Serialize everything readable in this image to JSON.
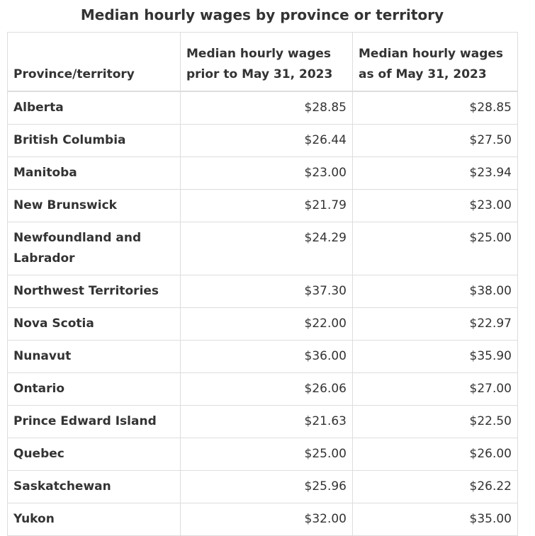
{
  "caption": "Median hourly wages by province or territory",
  "headers": {
    "province": "Province/territory",
    "prior_line1": "Median hourly wages",
    "prior_line2": "prior to May 31, 2023",
    "asof_line1": "Median hourly wages",
    "asof_line2": "as of May 31, 2023"
  },
  "rows": [
    {
      "province": "Alberta",
      "prior": "$28.85",
      "asof": "$28.85"
    },
    {
      "province": "British Columbia",
      "prior": "$26.44",
      "asof": "$27.50"
    },
    {
      "province": "Manitoba",
      "prior": "$23.00",
      "asof": "$23.94"
    },
    {
      "province": "New Brunswick",
      "prior": "$21.79",
      "asof": "$23.00"
    },
    {
      "province": "Newfoundland and Labrador",
      "prior": "$24.29",
      "asof": "$25.00"
    },
    {
      "province": "Northwest Territories",
      "prior": "$37.30",
      "asof": "$38.00"
    },
    {
      "province": "Nova Scotia",
      "prior": "$22.00",
      "asof": "$22.97"
    },
    {
      "province": "Nunavut",
      "prior": "$36.00",
      "asof": "$35.90"
    },
    {
      "province": "Ontario",
      "prior": "$26.06",
      "asof": "$27.00"
    },
    {
      "province": "Prince Edward Island",
      "prior": "$21.63",
      "asof": "$22.50"
    },
    {
      "province": "Quebec",
      "prior": "$25.00",
      "asof": "$26.00"
    },
    {
      "province": "Saskatchewan",
      "prior": "$25.96",
      "asof": "$26.22"
    },
    {
      "province": "Yukon",
      "prior": "$32.00",
      "asof": "$35.00"
    }
  ]
}
